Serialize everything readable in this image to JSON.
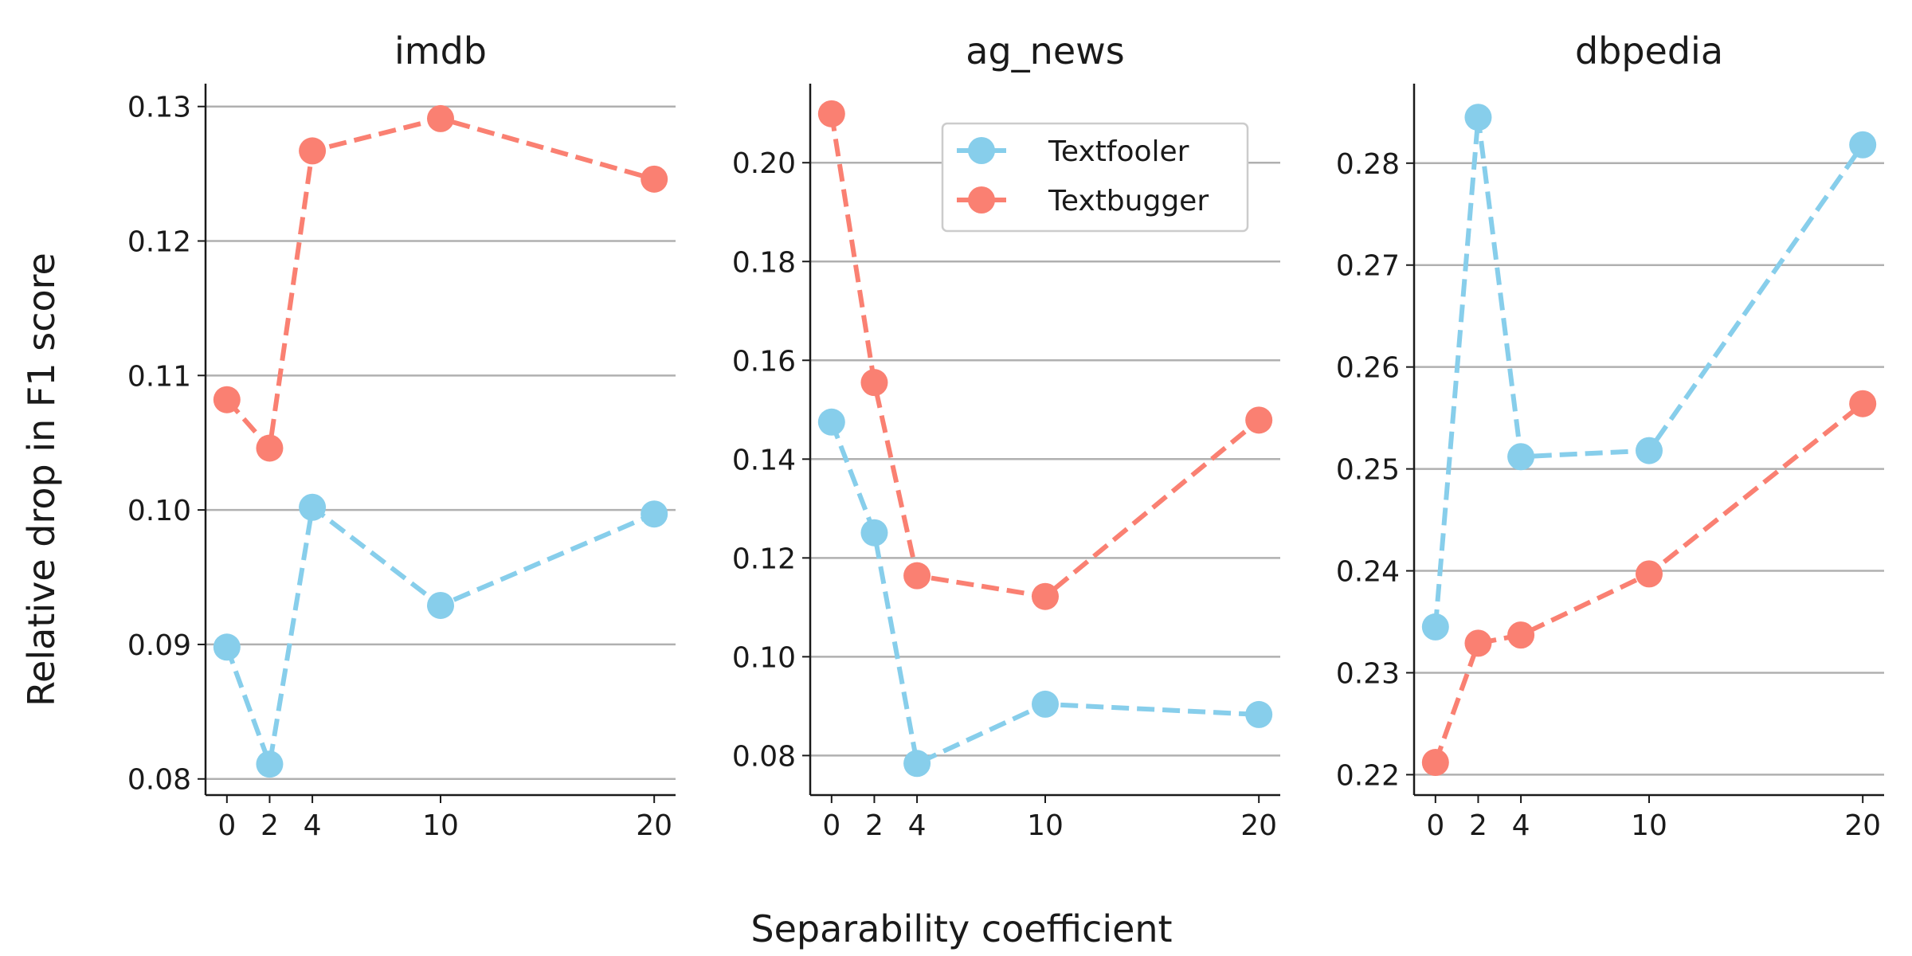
{
  "figure": {
    "ylabel": "Relative drop in F1 score",
    "xlabel": "Separability coefficient"
  },
  "legend": {
    "entries": [
      "Textfooler",
      "Textbugger"
    ]
  },
  "colors": {
    "Textfooler": "#87ceeb",
    "Textbugger": "#fa8072",
    "grid": "#b0b0b0",
    "axis": "#1a1a1a"
  },
  "chart_data": [
    {
      "type": "line",
      "title": "imdb",
      "x": [
        0,
        2,
        4,
        10,
        20
      ],
      "xticks": [
        "0",
        "2",
        "4",
        "10",
        "20"
      ],
      "xlim": [
        -1,
        21
      ],
      "yticks": [
        "0.08",
        "0.09",
        "0.10",
        "0.11",
        "0.12",
        "0.13"
      ],
      "ytick_values": [
        0.08,
        0.09,
        0.1,
        0.11,
        0.12,
        0.13
      ],
      "ylim": [
        0.0788,
        0.1317
      ],
      "grid": "horizontal",
      "series": [
        {
          "name": "Textfooler",
          "values": [
            0.0898,
            0.0811,
            0.1002,
            0.0929,
            0.0997
          ]
        },
        {
          "name": "Textbugger",
          "values": [
            0.1082,
            0.1046,
            0.1267,
            0.1291,
            0.1246
          ]
        }
      ]
    },
    {
      "type": "line",
      "title": "ag_news",
      "x": [
        0,
        2,
        4,
        10,
        20
      ],
      "xticks": [
        "0",
        "2",
        "4",
        "10",
        "20"
      ],
      "xlim": [
        -1,
        21
      ],
      "yticks": [
        "0.08",
        "0.10",
        "0.12",
        "0.14",
        "0.16",
        "0.18",
        "0.20"
      ],
      "ytick_values": [
        0.08,
        0.1,
        0.12,
        0.14,
        0.16,
        0.18,
        0.2
      ],
      "ylim": [
        0.072,
        0.216
      ],
      "grid": "horizontal",
      "legend_position": "upper right",
      "series": [
        {
          "name": "Textfooler",
          "values": [
            0.1475,
            0.1251,
            0.0784,
            0.0904,
            0.0883
          ]
        },
        {
          "name": "Textbugger",
          "values": [
            0.2099,
            0.1555,
            0.1164,
            0.1122,
            0.1479
          ]
        }
      ]
    },
    {
      "type": "line",
      "title": "dbpedia",
      "x": [
        0,
        2,
        4,
        10,
        20
      ],
      "xticks": [
        "0",
        "2",
        "4",
        "10",
        "20"
      ],
      "xlim": [
        -1,
        21
      ],
      "yticks": [
        "0.22",
        "0.23",
        "0.24",
        "0.25",
        "0.26",
        "0.27",
        "0.28"
      ],
      "ytick_values": [
        0.22,
        0.23,
        0.24,
        0.25,
        0.26,
        0.27,
        0.28
      ],
      "ylim": [
        0.218,
        0.2878
      ],
      "grid": "horizontal",
      "series": [
        {
          "name": "Textfooler",
          "values": [
            0.2345,
            0.2845,
            0.2512,
            0.2518,
            0.2818
          ]
        },
        {
          "name": "Textbugger",
          "values": [
            0.2212,
            0.2329,
            0.2337,
            0.2397,
            0.2564
          ]
        }
      ]
    }
  ]
}
